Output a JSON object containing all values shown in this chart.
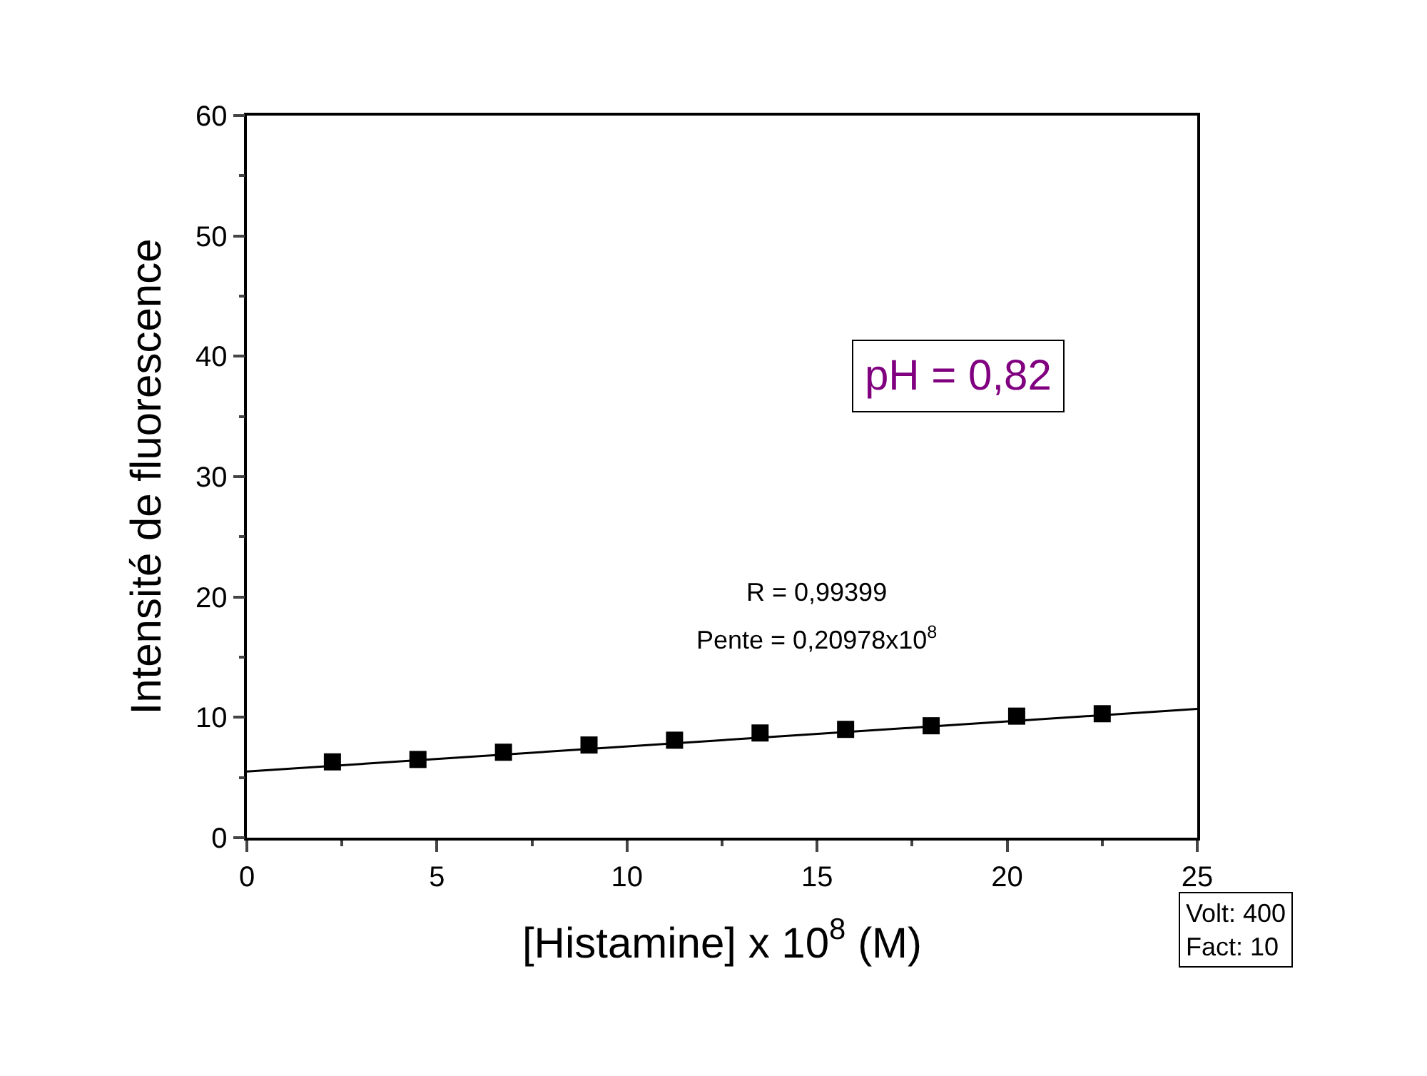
{
  "chart_data": {
    "type": "scatter",
    "xlabel": "[Histamine] x 10$^{8}$ (M)",
    "ylabel": "Intensité de fluorescence",
    "x": [
      2.25,
      4.5,
      6.75,
      9,
      11.25,
      13.5,
      15.75,
      18,
      20.25,
      22.5
    ],
    "series": [
      {
        "color": "#000000",
        "marker": "square",
        "values": [
          6.3,
          6.5,
          7.1,
          7.7,
          8.1,
          8.7,
          9.0,
          9.3,
          10.1,
          10.3
        ]
      },
      {
        "type": "line",
        "color": "#000000",
        "x": [
          0,
          25
        ],
        "values": [
          5.5,
          10.7
        ]
      }
    ],
    "xlim": [
      0,
      25
    ],
    "xticks": [
      0,
      5,
      10,
      15,
      20,
      25
    ],
    "ylim": [
      0,
      60
    ],
    "yticks": [
      0,
      10,
      20,
      30,
      40,
      50,
      60
    ],
    "annotations": [
      "R = 0,99399",
      "Pente = 0,20978x10$^{8}$",
      "pH = 0,82",
      "Volt: 400\nFact: 10"
    ]
  }
}
